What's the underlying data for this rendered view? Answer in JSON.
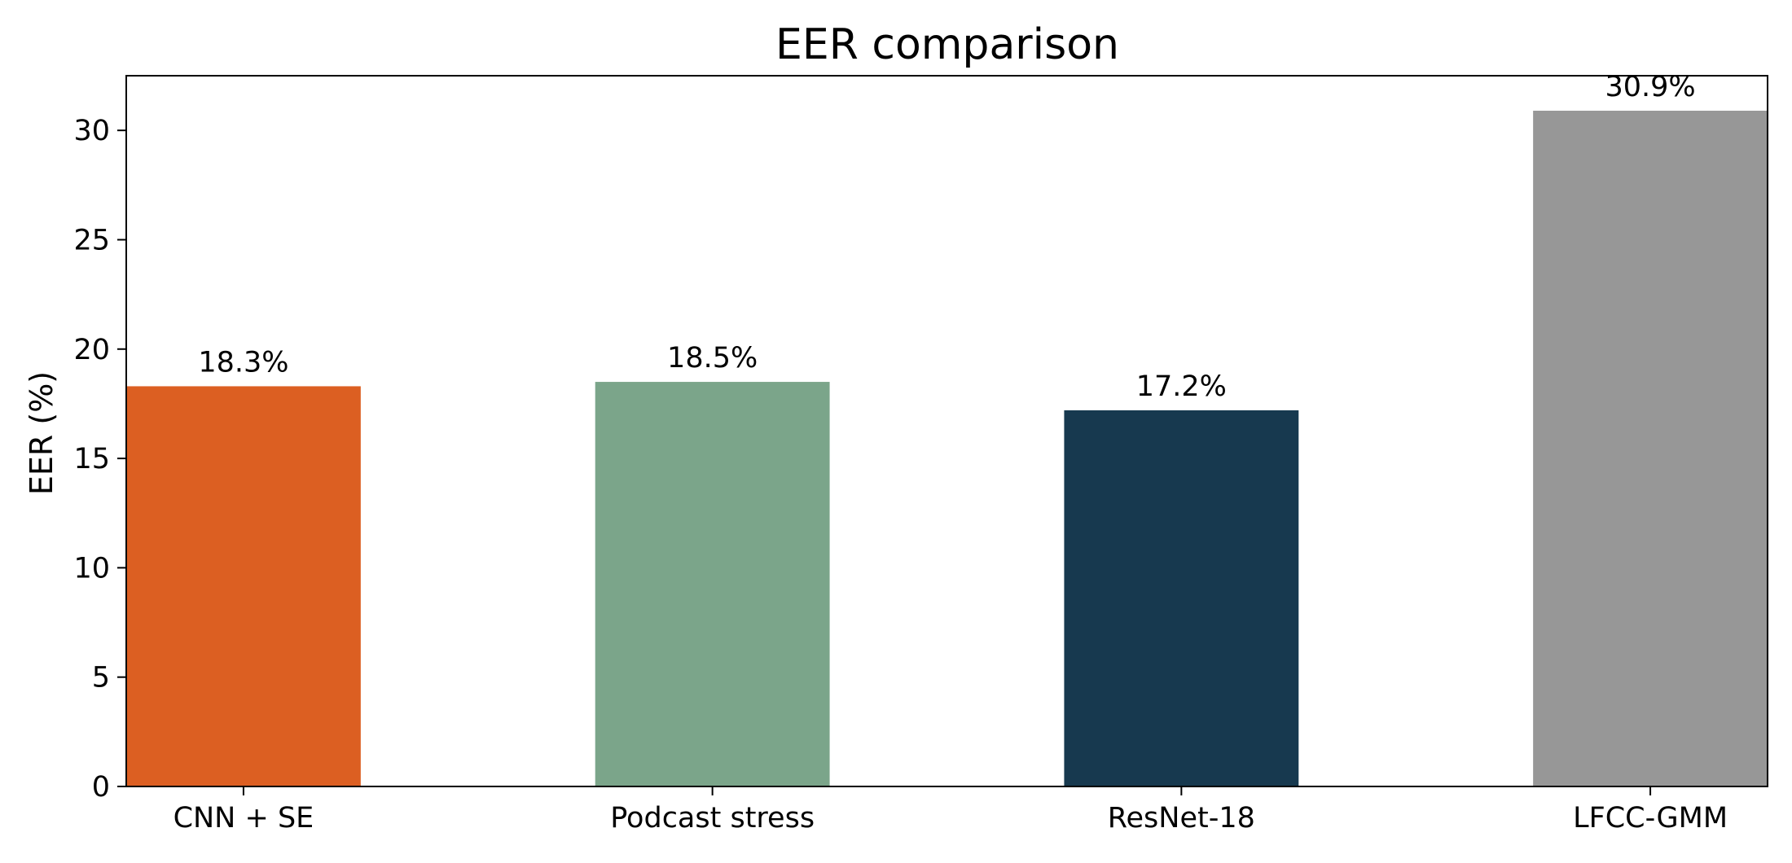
{
  "chart_data": {
    "type": "bar",
    "title": "EER comparison",
    "xlabel": "",
    "ylabel": "EER (%)",
    "categories": [
      "CNN + SE",
      "Podcast stress",
      "ResNet-18",
      "LFCC-GMM"
    ],
    "values": [
      18.3,
      18.5,
      17.2,
      30.9
    ],
    "data_labels": [
      "18.3%",
      "18.5%",
      "17.2%",
      "30.9%"
    ],
    "colors": [
      "#dc5f22",
      "#7ba58a",
      "#17394f",
      "#979797"
    ],
    "ylim": [
      0,
      32.5
    ],
    "yticks": [
      0,
      5,
      10,
      15,
      20,
      25,
      30
    ],
    "grid": false,
    "legend": "none"
  }
}
